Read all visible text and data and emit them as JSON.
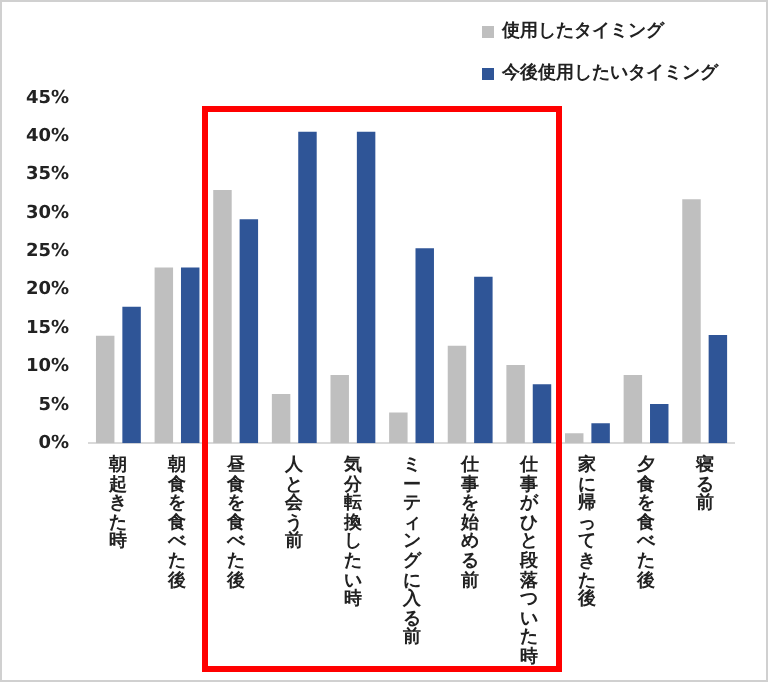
{
  "chart_data": {
    "type": "bar",
    "categories": [
      "朝起きた時",
      "朝食を食べた後",
      "昼食を食べた後",
      "人と会う前",
      "気分転換したい時",
      "ミーティングに入る前",
      "仕事を始める前",
      "仕事がひと段落ついた時",
      "家に帰ってきた後",
      "夕食を食べた後",
      "寝る前"
    ],
    "series": [
      {
        "name": "使用したタイミング",
        "color": "#bfbfbf",
        "values": [
          14.0,
          22.9,
          33.0,
          6.4,
          8.9,
          4.0,
          12.7,
          10.2,
          1.3,
          8.9,
          31.8
        ]
      },
      {
        "name": "今後使用したいタイミング",
        "color": "#2f5597",
        "values": [
          17.8,
          22.9,
          29.2,
          40.6,
          40.6,
          25.4,
          21.7,
          7.7,
          2.6,
          5.1,
          14.1
        ]
      }
    ],
    "ylim": [
      0,
      45
    ],
    "yticks": [
      {
        "value": 0,
        "label": "0%"
      },
      {
        "value": 5,
        "label": "5%"
      },
      {
        "value": 10,
        "label": "10%"
      },
      {
        "value": 15,
        "label": "15%"
      },
      {
        "value": 20,
        "label": "20%"
      },
      {
        "value": 25,
        "label": "25%"
      },
      {
        "value": 30,
        "label": "30%"
      },
      {
        "value": 35,
        "label": "35%"
      },
      {
        "value": 40,
        "label": "40%"
      },
      {
        "value": 45,
        "label": "45%"
      }
    ],
    "grid": false,
    "legend": "top right"
  }
}
